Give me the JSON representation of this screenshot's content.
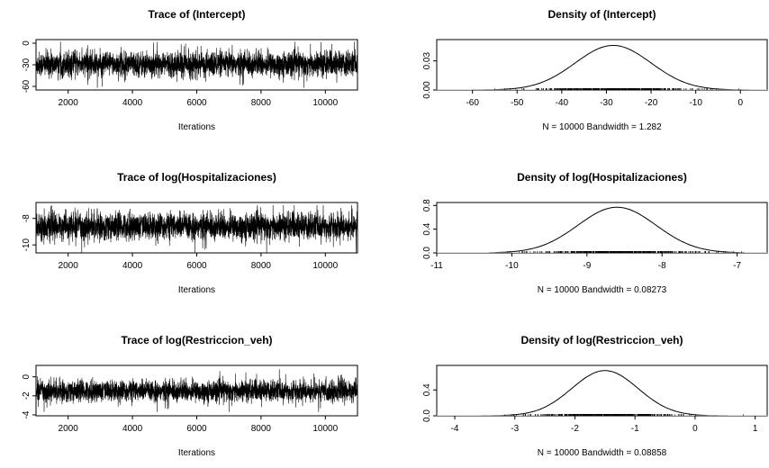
{
  "chart_data": [
    {
      "type": "line",
      "title": "Trace of (Intercept)",
      "xlabel": "Iterations",
      "ylabel": "",
      "xlim": [
        1001,
        11000
      ],
      "ylim": [
        -65,
        5
      ],
      "xticks": [
        "2000",
        "4000",
        "6000",
        "8000",
        "10000"
      ],
      "yticks": [
        "0",
        "-30",
        "-60"
      ],
      "series": [
        {
          "mean": -29,
          "sd": 8.5,
          "lo": -62,
          "hi": 2,
          "n": 10000
        }
      ]
    },
    {
      "type": "line",
      "title": "Density of (Intercept)",
      "xlabel": "N = 10000   Bandwidth = 1.282",
      "ylabel": "",
      "xlim": [
        -68,
        6
      ],
      "ylim": [
        0,
        0.052
      ],
      "xticks": [
        "-60",
        "-50",
        "-40",
        "-30",
        "-20",
        "-10",
        "0"
      ],
      "yticks": [
        "0.00",
        "0.03"
      ],
      "series": [
        {
          "peak_x": -28.5,
          "peak_y": 0.046,
          "sd": 8.5,
          "min": -62,
          "max": 2
        }
      ]
    },
    {
      "type": "line",
      "title": "Trace of log(Hospitalizaciones)",
      "xlabel": "Iterations",
      "ylabel": "",
      "xlim": [
        1001,
        11000
      ],
      "ylim": [
        -10.6,
        -6.8
      ],
      "xticks": [
        "2000",
        "4000",
        "6000",
        "8000",
        "10000"
      ],
      "yticks": [
        "-8",
        "-10"
      ],
      "series": [
        {
          "mean": -8.6,
          "sd": 0.5,
          "lo": -10.6,
          "hi": -7.0,
          "n": 10000
        }
      ]
    },
    {
      "type": "line",
      "title": "Density of log(Hospitalizaciones)",
      "xlabel": "N = 10000   Bandwidth = 0.08273",
      "ylabel": "",
      "xlim": [
        -11,
        -6.6
      ],
      "ylim": [
        0,
        0.85
      ],
      "xticks": [
        "-11",
        "-10",
        "-9",
        "-8",
        "-7"
      ],
      "yticks": [
        "0.0",
        "0.4",
        "0.8"
      ],
      "series": [
        {
          "peak_x": -8.6,
          "peak_y": 0.77,
          "sd": 0.52,
          "min": -10.3,
          "max": -6.9
        }
      ]
    },
    {
      "type": "line",
      "title": "Trace of log(Restriccion_veh)",
      "xlabel": "Iterations",
      "ylabel": "",
      "xlim": [
        1001,
        11000
      ],
      "ylim": [
        -4.1,
        1.2
      ],
      "xticks": [
        "2000",
        "4000",
        "6000",
        "8000",
        "10000"
      ],
      "yticks": [
        "0",
        "-2",
        "-4"
      ],
      "series": [
        {
          "mean": -1.5,
          "sd": 0.55,
          "lo": -3.7,
          "hi": 0.8,
          "n": 10000
        }
      ]
    },
    {
      "type": "line",
      "title": "Density of log(Restriccion_veh)",
      "xlabel": "N = 10000   Bandwidth = 0.08858",
      "ylabel": "",
      "xlim": [
        -4.3,
        1.2
      ],
      "ylim": [
        0,
        0.78
      ],
      "xticks": [
        "-4",
        "-3",
        "-2",
        "-1",
        "0",
        "1"
      ],
      "yticks": [
        "0.0",
        "0.4"
      ],
      "series": [
        {
          "peak_x": -1.5,
          "peak_y": 0.7,
          "sd": 0.55,
          "min": -3.7,
          "max": 0.8
        }
      ]
    }
  ]
}
